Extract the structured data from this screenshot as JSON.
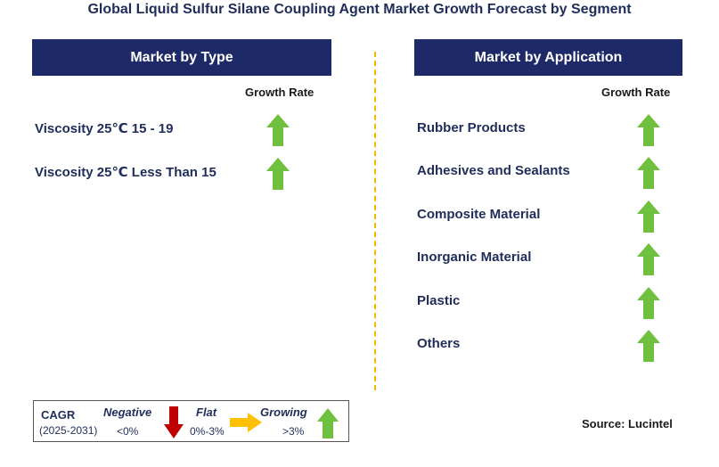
{
  "title": "Global Liquid Sulfur Silane Coupling Agent Market Growth Forecast by Segment",
  "chart_data": [
    {
      "type": "table",
      "header": "Market by Type",
      "column_label": "Growth Rate",
      "rows": [
        {
          "label": "Viscosity 25℃ 15 - 19",
          "growth": "growing"
        },
        {
          "label": "Viscosity 25℃ Less Than 15",
          "growth": "growing"
        }
      ]
    },
    {
      "type": "table",
      "header": "Market by Application",
      "column_label": "Growth Rate",
      "rows": [
        {
          "label": "Rubber Products",
          "growth": "growing"
        },
        {
          "label": "Adhesives and Sealants",
          "growth": "growing"
        },
        {
          "label": "Composite Material",
          "growth": "growing"
        },
        {
          "label": "Inorganic Material",
          "growth": "growing"
        },
        {
          "label": "Plastic",
          "growth": "growing"
        },
        {
          "label": "Others",
          "growth": "growing"
        }
      ]
    }
  ],
  "legend": {
    "cagr": "CAGR",
    "period": "(2025-2031)",
    "negative": {
      "label": "Negative",
      "range": "<0%",
      "icon": "down-arrow-icon",
      "color": "#c00000"
    },
    "flat": {
      "label": "Flat",
      "range": "0%-3%",
      "icon": "right-arrow-icon",
      "color": "#ffc000"
    },
    "growing": {
      "label": "Growing",
      "range": ">3%",
      "icon": "up-arrow-icon",
      "color": "#70c040"
    }
  },
  "source": "Source: Lucintel",
  "colors": {
    "header_bg": "#1e2a68",
    "text": "#1f2d5a",
    "divider": "#f5b800",
    "growing": "#70c040",
    "negative": "#c00000",
    "flat": "#ffc000"
  }
}
